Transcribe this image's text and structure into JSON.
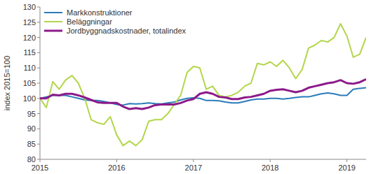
{
  "chart_data": {
    "type": "line",
    "y_label": "index 2015=100",
    "x": [
      2015,
      2015.083,
      2015.167,
      2015.25,
      2015.333,
      2015.417,
      2015.5,
      2015.583,
      2015.667,
      2015.75,
      2015.833,
      2015.917,
      2016,
      2016.083,
      2016.167,
      2016.25,
      2016.333,
      2016.417,
      2016.5,
      2016.583,
      2016.667,
      2016.75,
      2016.833,
      2016.917,
      2017,
      2017.083,
      2017.167,
      2017.25,
      2017.333,
      2017.417,
      2017.5,
      2017.583,
      2017.667,
      2017.75,
      2017.833,
      2017.917,
      2018,
      2018.083,
      2018.167,
      2018.25,
      2018.333,
      2018.417,
      2018.5,
      2018.583,
      2018.667,
      2018.75,
      2018.833,
      2018.917,
      2019,
      2019.083,
      2019.167,
      2019.25
    ],
    "xlim": [
      2015,
      2019.25
    ],
    "xticks": [
      2015,
      2016,
      2017,
      2018,
      2019
    ],
    "ylim": [
      80,
      130
    ],
    "yticks": [
      80,
      85,
      90,
      95,
      100,
      105,
      110,
      115,
      120,
      125,
      130
    ],
    "grid": false,
    "legend": "upper left",
    "series": [
      {
        "name": "Markkonstruktioner",
        "color": "#2b7bba",
        "values": [
          100,
          100.5,
          101,
          101,
          101,
          100.5,
          100,
          99.5,
          99.3,
          99.3,
          99,
          98.5,
          98,
          97.8,
          98.3,
          98.2,
          98.3,
          98.5,
          98.3,
          98.2,
          98.5,
          98.8,
          99.5,
          100,
          100.2,
          100,
          99.3,
          99.3,
          99.2,
          98.8,
          98.5,
          98.5,
          99,
          99.5,
          99.8,
          99.8,
          100,
          100,
          99.8,
          100,
          100.3,
          100.5,
          100.5,
          101,
          101.5,
          101.8,
          101.5,
          101,
          101,
          103,
          103.3,
          103.5
        ]
      },
      {
        "name": "Beläggningar",
        "color": "#b3d64a",
        "values": [
          100,
          97,
          105.5,
          103,
          106,
          107.5,
          105,
          100,
          93,
          92,
          91.5,
          94,
          88,
          84.5,
          86,
          84.5,
          86.5,
          92.5,
          93,
          93,
          95,
          98,
          101,
          108.5,
          110.5,
          110,
          103,
          104,
          101,
          100.5,
          101,
          102,
          104,
          105,
          111.5,
          111,
          112,
          110.5,
          112.5,
          110,
          106.5,
          109.5,
          116.5,
          117.5,
          119,
          118.5,
          120,
          124.5,
          120.5,
          113.5,
          114.5,
          120
        ]
      },
      {
        "name": "Jordbyggnadskostnader, totalindex",
        "color": "#8c1a8a",
        "values": [
          100,
          100,
          101.2,
          101,
          101.5,
          101.5,
          101,
          100.3,
          99.5,
          98.7,
          98.5,
          98.5,
          98.5,
          97.3,
          96.5,
          96.8,
          96.5,
          97,
          97.8,
          98,
          98,
          98,
          98.5,
          99.3,
          99.8,
          101.5,
          102,
          101.5,
          100.5,
          100.3,
          99.8,
          99.8,
          100.3,
          100.5,
          101,
          101.5,
          102.5,
          102.8,
          103,
          102.5,
          102,
          102.5,
          103.5,
          104,
          104.5,
          105,
          105.3,
          106,
          105,
          104.8,
          105.3,
          106.3
        ]
      }
    ]
  }
}
